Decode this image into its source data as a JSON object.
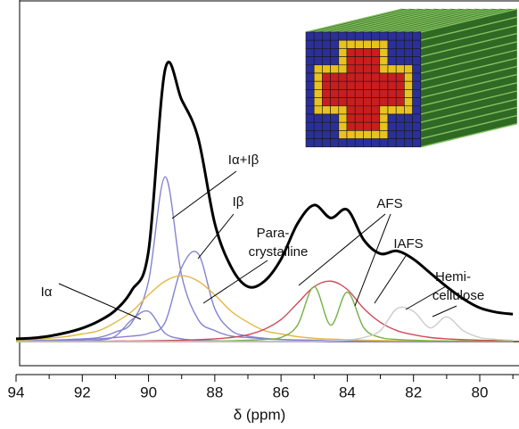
{
  "chart_data": {
    "type": "line",
    "xlabel": "δ (ppm)",
    "xlim": [
      94,
      79
    ],
    "xticks": [
      94,
      92,
      90,
      88,
      86,
      84,
      82,
      80
    ],
    "xminorticks": [
      93,
      91,
      89,
      87,
      85,
      83,
      81,
      79
    ],
    "ylim": [
      0,
      100
    ],
    "x": [
      94,
      93.5,
      93,
      92.5,
      92,
      91.5,
      91,
      90.5,
      90,
      89.5,
      89,
      88.5,
      88,
      87.5,
      87,
      86.5,
      86,
      85.5,
      85,
      84.5,
      84,
      83.5,
      83,
      82.5,
      82,
      81.5,
      81,
      80.5,
      80,
      79.5,
      79
    ],
    "series": [
      {
        "color": "#000000",
        "values": [
          1,
          1.3,
          2,
          3.2,
          4.9,
          7.5,
          11.4,
          18.8,
          33,
          99,
          88,
          74,
          43,
          27,
          20,
          22,
          30,
          43,
          49.7,
          45,
          48,
          37,
          32,
          33,
          30,
          25,
          20,
          15.6,
          12.3,
          10.7,
          10
        ]
      },
      {
        "color": "#8383d2",
        "values": [
          0,
          0,
          0.1,
          0.2,
          0.3,
          0.5,
          2,
          8,
          11,
          3,
          1,
          0.5,
          0.3,
          0.2,
          0.1,
          0,
          0,
          0,
          0,
          0,
          0,
          0,
          0,
          0,
          0,
          0,
          0,
          0,
          0,
          0,
          0
        ]
      },
      {
        "color": "#8383d2",
        "values": [
          0.3,
          0.4,
          0.5,
          0.7,
          1,
          1.5,
          3.5,
          7,
          22,
          60,
          24,
          8,
          4,
          2,
          1.5,
          1,
          0.7,
          0.5,
          0.4,
          0.3,
          0.3,
          0.2,
          0.2,
          0.2,
          0.1,
          0.1,
          0.1,
          0.1,
          0.1,
          0.1,
          0.1
        ]
      },
      {
        "color": "#8383d2",
        "values": [
          0.2,
          0.3,
          0.4,
          0.5,
          0.7,
          1,
          1.5,
          2,
          3,
          7,
          27,
          32,
          12,
          4,
          2,
          1.2,
          0.8,
          0.6,
          0.5,
          0.4,
          0.3,
          0.3,
          0.2,
          0.2,
          0.2,
          0.1,
          0.1,
          0.1,
          0.1,
          0.1,
          0.1
        ]
      },
      {
        "color": "#e2b842",
        "values": [
          0.5,
          0.8,
          1.2,
          1.8,
          2.8,
          4,
          7,
          11,
          17,
          22,
          24,
          22,
          17,
          11,
          7,
          4,
          2.8,
          1.8,
          1.2,
          0.9,
          0.7,
          0.5,
          0.4,
          0.3,
          0.3,
          0.2,
          0.2,
          0.2,
          0.1,
          0.1,
          0.1
        ]
      },
      {
        "color": "#d04a5a",
        "values": [
          0,
          0,
          0,
          0,
          0.1,
          0.1,
          0.2,
          0.2,
          0.3,
          0.4,
          0.5,
          0.7,
          1,
          1.5,
          2.5,
          4.5,
          8,
          14,
          20,
          22,
          19,
          12,
          7,
          4,
          2.5,
          1.5,
          1,
          0.7,
          0.5,
          0.4,
          0.3
        ]
      },
      {
        "color": "#74b043",
        "values": [
          0,
          0,
          0,
          0,
          0,
          0,
          0,
          0,
          0,
          0,
          0.1,
          0.1,
          0.2,
          0.3,
          0.5,
          0.8,
          1.5,
          6,
          20,
          6,
          18,
          5,
          1.5,
          0.8,
          0.5,
          0.3,
          0.2,
          0.2,
          0.1,
          0.1,
          0.1
        ]
      },
      {
        "color": "#cccccc",
        "values": [
          0,
          0,
          0,
          0,
          0,
          0,
          0,
          0,
          0,
          0,
          0,
          0,
          0,
          0,
          0,
          0,
          0,
          0,
          0,
          0.3,
          0.6,
          1.5,
          4,
          12,
          11,
          5,
          9,
          4,
          1.5,
          0.8,
          0.5
        ]
      }
    ],
    "annotations": [
      {
        "lines": [
          "Iα"
        ]
      },
      {
        "lines": [
          "Iα+Iβ"
        ]
      },
      {
        "lines": [
          "Iβ"
        ]
      },
      {
        "lines": [
          "Para-",
          "crystalline"
        ]
      },
      {
        "lines": [
          "AFS"
        ]
      },
      {
        "lines": [
          "IAFS"
        ]
      },
      {
        "lines": [
          "Hemi-",
          "cellulose"
        ]
      }
    ]
  }
}
